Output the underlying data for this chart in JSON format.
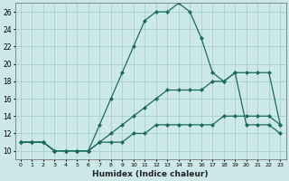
{
  "xlabel": "Humidex (Indice chaleur)",
  "bg_color": "#cce8e8",
  "line_color": "#1a6b5a",
  "grid_color": "#aacfcf",
  "x_hours": [
    0,
    1,
    2,
    3,
    4,
    5,
    6,
    7,
    8,
    9,
    10,
    11,
    12,
    13,
    14,
    15,
    16,
    17,
    18,
    19,
    20,
    21,
    22,
    23
  ],
  "humidex": [
    11,
    11,
    11,
    10,
    10,
    10,
    10,
    13,
    16,
    19,
    22,
    25,
    26,
    26,
    27,
    26,
    23,
    19,
    18,
    19,
    13,
    13,
    13,
    12
  ],
  "temp": [
    11,
    11,
    11,
    10,
    10,
    10,
    10,
    11,
    12,
    13,
    14,
    15,
    16,
    17,
    17,
    17,
    17,
    18,
    18,
    19,
    19,
    19,
    19,
    13
  ],
  "dewpoint": [
    11,
    11,
    11,
    10,
    10,
    10,
    10,
    11,
    11,
    11,
    12,
    12,
    13,
    13,
    13,
    13,
    13,
    13,
    14,
    14,
    14,
    14,
    14,
    13
  ],
  "ylim_min": 9,
  "ylim_max": 27,
  "yticks": [
    10,
    12,
    14,
    16,
    18,
    20,
    22,
    24,
    26
  ],
  "xtick_labels": [
    "0",
    "1",
    "2",
    "3",
    "4",
    "5",
    "6",
    "7",
    "8",
    "9",
    "10",
    "11",
    "12",
    "13",
    "14",
    "15",
    "16",
    "17",
    "18",
    "19",
    "20",
    "21",
    "22",
    "23"
  ],
  "marker": "D",
  "markersize": 2,
  "linewidth": 0.9
}
